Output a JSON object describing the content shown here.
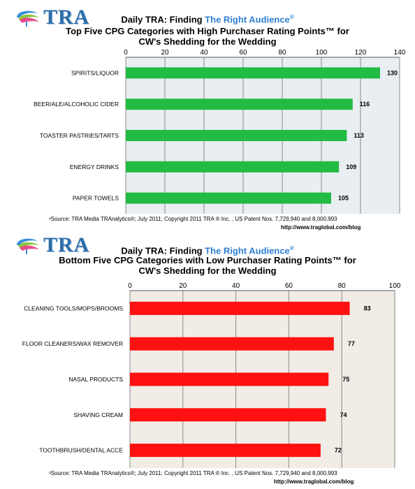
{
  "brand": {
    "logo_text": "TRA"
  },
  "top": {
    "title_prefix": "Daily TRA: Finding ",
    "title_highlight": "The Right Audience",
    "title_reg": "®",
    "subtitle_line1": "Top Five CPG Categories with High Purchaser Rating Points™ for",
    "subtitle_line2": "CW's Shedding for the Wedding",
    "source": "¹Source: TRA Media TRAnalytics®; July 2011; Copyright 2011 TRA ® Inc. , US Patent Nos. 7,729,940 and 8,000,993",
    "url": "http://www.traglobal.com/blog"
  },
  "bottom": {
    "title_prefix": "Daily TRA: Finding ",
    "title_highlight": "The Right Audience",
    "title_reg": "®",
    "subtitle_line1": "Bottom Five CPG Categories with Low Purchaser Rating Points™ for",
    "subtitle_line2": "CW's Shedding for the Wedding",
    "source": "¹Source: TRA Media TRAnalytics®; July 2011; Copyright 2011 TRA ® Inc. , US Patent Nos. 7,729,940 and 8,000,993",
    "url": "http://www.traglobal.com/blog"
  },
  "chart_data": [
    {
      "type": "bar",
      "orientation": "horizontal",
      "title": "Top Five CPG Categories with High Purchaser Rating Points™ for CW's Shedding for the Wedding",
      "categories": [
        "SPIRITS/LIQUOR",
        "BEER/ALE/ALCOHOLIC CIDER",
        "TOASTER PASTRIES/TARTS",
        "ENERGY DRINKS",
        "PAPER TOWELS"
      ],
      "values": [
        130,
        116,
        113,
        109,
        105
      ],
      "xlim": [
        0,
        140
      ],
      "ticks": [
        0,
        20,
        40,
        60,
        80,
        100,
        120,
        140
      ],
      "bar_color": "#22bb44",
      "grid": true,
      "axis_position": "top"
    },
    {
      "type": "bar",
      "orientation": "horizontal",
      "title": "Bottom Five CPG Categories with Low Purchaser Rating Points™ for CW's Shedding for the Wedding",
      "categories": [
        "CLEANING TOOLS/MOPS/BROOMS",
        "FLOOR CLEANERS/WAX  REMOVER",
        "NASAL PRODUCTS",
        "SHAVING CREAM",
        "TOOTHBRUSH/DENTAL  ACCE"
      ],
      "values": [
        83,
        77,
        75,
        74,
        72
      ],
      "xlim": [
        0,
        100
      ],
      "ticks": [
        0,
        20,
        40,
        60,
        80,
        100
      ],
      "bar_color": "#ff1111",
      "grid": true,
      "axis_position": "top"
    }
  ]
}
